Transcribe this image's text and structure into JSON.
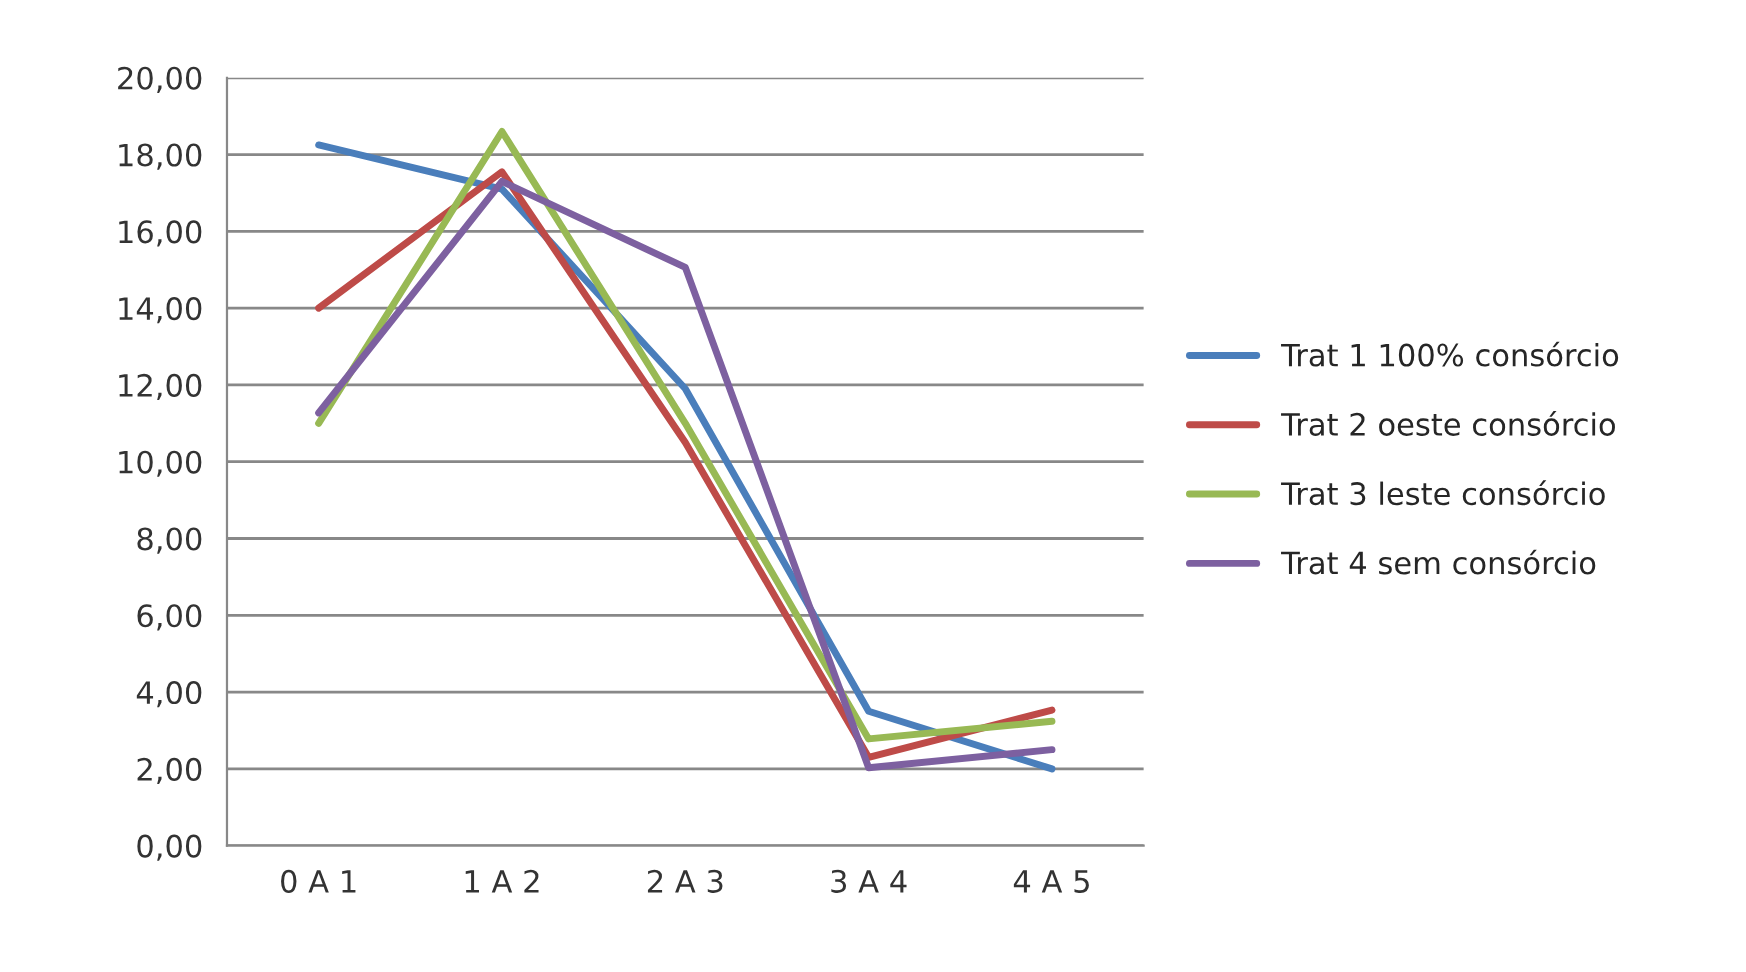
{
  "chart_data": {
    "type": "line",
    "categories": [
      "0 A 1",
      "1 A 2",
      "2 A 3",
      "3 A 4",
      "4 A 5"
    ],
    "series": [
      {
        "name": "Trat 1 100% consórcio",
        "color": "#4a7ebb",
        "values": [
          18.25,
          17.1,
          11.9,
          3.5,
          2.0
        ]
      },
      {
        "name": "Trat 2 oeste consórcio",
        "color": "#be4b48",
        "values": [
          14.0,
          17.55,
          10.5,
          2.3,
          3.53
        ]
      },
      {
        "name": "Trat 3 leste consórcio",
        "color": "#98b954",
        "values": [
          11.0,
          18.6,
          11.0,
          2.78,
          3.24
        ]
      },
      {
        "name": "Trat 4 sem consórcio",
        "color": "#7d60a0",
        "values": [
          11.27,
          17.3,
          15.06,
          2.03,
          2.5
        ]
      }
    ],
    "ylim": [
      0,
      20
    ],
    "yticks": [
      {
        "value": 0,
        "label": "0,00"
      },
      {
        "value": 2,
        "label": "2,00"
      },
      {
        "value": 4,
        "label": "4,00"
      },
      {
        "value": 6,
        "label": "6,00"
      },
      {
        "value": 8,
        "label": "8,00"
      },
      {
        "value": 10,
        "label": "10,00"
      },
      {
        "value": 12,
        "label": "12,00"
      },
      {
        "value": 14,
        "label": "14,00"
      },
      {
        "value": 16,
        "label": "16,00"
      },
      {
        "value": 18,
        "label": "18,00"
      },
      {
        "value": 20,
        "label": "20,00"
      }
    ],
    "grid": "y",
    "legend": "right",
    "marker": "none",
    "line_style": "solid"
  }
}
